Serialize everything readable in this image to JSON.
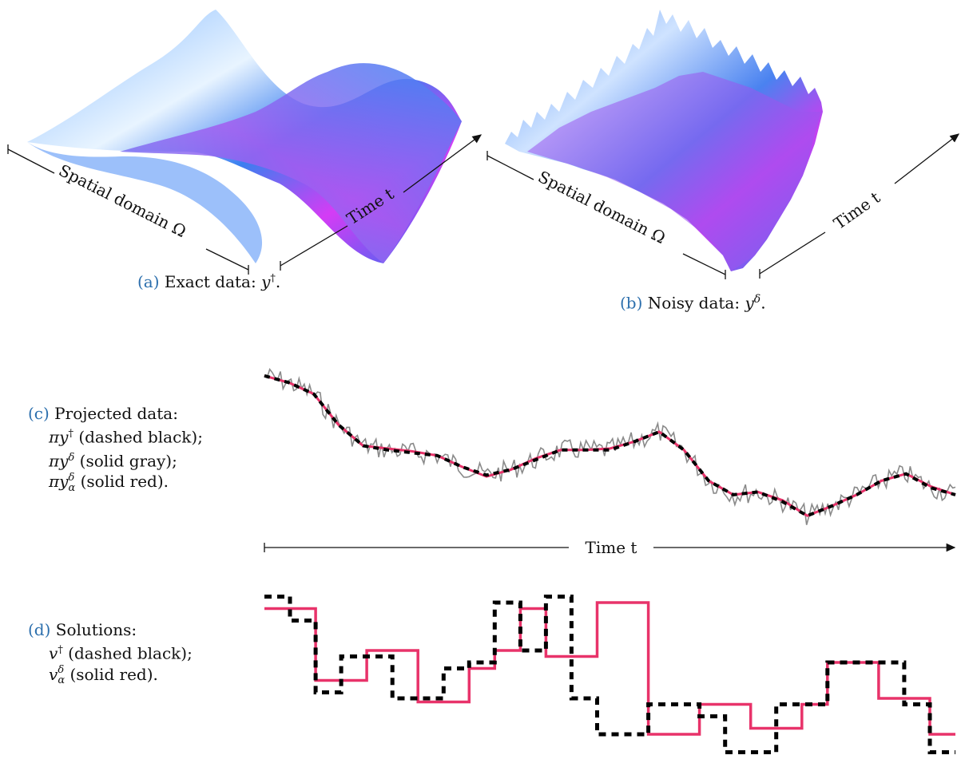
{
  "panels": {
    "a": {
      "tag": "(a)",
      "caption": "Exact data:",
      "symbol": "y",
      "sup": "†",
      "axis_spatial": "Spatial domain Ω",
      "axis_time": "Time t"
    },
    "b": {
      "tag": "(b)",
      "caption": "Noisy data:",
      "symbol": "y",
      "sup": "δ",
      "axis_spatial": "Spatial domain Ω",
      "axis_time": "Time t"
    },
    "c": {
      "tag": "(c)",
      "title": "Projected data:",
      "lines": [
        {
          "expr": "πy",
          "sup": "†",
          "sub": "",
          "desc": "(dashed black);"
        },
        {
          "expr": "πy",
          "sup": "δ",
          "sub": "",
          "desc": "(solid gray);"
        },
        {
          "expr": "πy",
          "sup": "δ",
          "sub": "α",
          "desc": "(solid red)."
        }
      ],
      "axis_time": "Time t"
    },
    "d": {
      "tag": "(d)",
      "title": "Solutions:",
      "lines": [
        {
          "expr": "v",
          "sup": "†",
          "sub": "",
          "desc": "(dashed black);"
        },
        {
          "expr": "v",
          "sup": "δ",
          "sub": "α",
          "desc": "(solid red)."
        }
      ]
    }
  },
  "colors": {
    "surface_light": "#e8f4ff",
    "surface_blue": "#3a7ff0",
    "surface_magenta": "#d43cf5",
    "exact": "#000000",
    "noisy": "#8a8a8a",
    "regularized": "#e8336a",
    "caption_tag": "#2c6fad"
  },
  "chart_data": [
    {
      "type": "line",
      "title": "",
      "xlabel": "Time t",
      "ylabel": "",
      "series": [
        {
          "name": "πy† (dashed black)",
          "values": [
            0.95,
            0.9,
            0.82,
            0.6,
            0.45,
            0.42,
            0.4,
            0.38,
            0.3,
            0.24,
            0.28,
            0.35,
            0.42,
            0.42,
            0.42,
            0.48,
            0.55,
            0.42,
            0.2,
            0.1,
            0.12,
            0.05,
            -0.05,
            0.02,
            0.1,
            0.2,
            0.25,
            0.15,
            0.1
          ]
        },
        {
          "name": "πyαδ (solid red)",
          "values": [
            0.95,
            0.9,
            0.82,
            0.6,
            0.45,
            0.43,
            0.41,
            0.38,
            0.3,
            0.23,
            0.28,
            0.36,
            0.42,
            0.42,
            0.43,
            0.48,
            0.55,
            0.42,
            0.2,
            0.1,
            0.12,
            0.06,
            -0.05,
            0.02,
            0.1,
            0.2,
            0.25,
            0.16,
            0.1
          ]
        }
      ]
    },
    {
      "type": "line",
      "title": "",
      "xlabel": "",
      "ylabel": "",
      "series": [
        {
          "name": "v† (dashed black)",
          "values": [
            1.0,
            0.8,
            0.2,
            0.5,
            0.5,
            0.15,
            0.15,
            0.4,
            0.45,
            0.95,
            0.55,
            1.0,
            0.15,
            -0.15,
            -0.15,
            0.1,
            0.1,
            0.0,
            -0.3,
            -0.3,
            0.1,
            0.1,
            0.45,
            0.45,
            0.45,
            0.1,
            -0.3
          ]
        },
        {
          "name": "vαδ (solid red)",
          "values": [
            0.9,
            0.9,
            0.3,
            0.3,
            0.55,
            0.55,
            0.12,
            0.12,
            0.4,
            0.55,
            0.9,
            0.5,
            0.5,
            0.95,
            0.95,
            -0.15,
            -0.15,
            0.1,
            0.1,
            -0.1,
            -0.1,
            0.1,
            0.45,
            0.45,
            0.15,
            0.15,
            -0.15
          ]
        }
      ]
    }
  ]
}
